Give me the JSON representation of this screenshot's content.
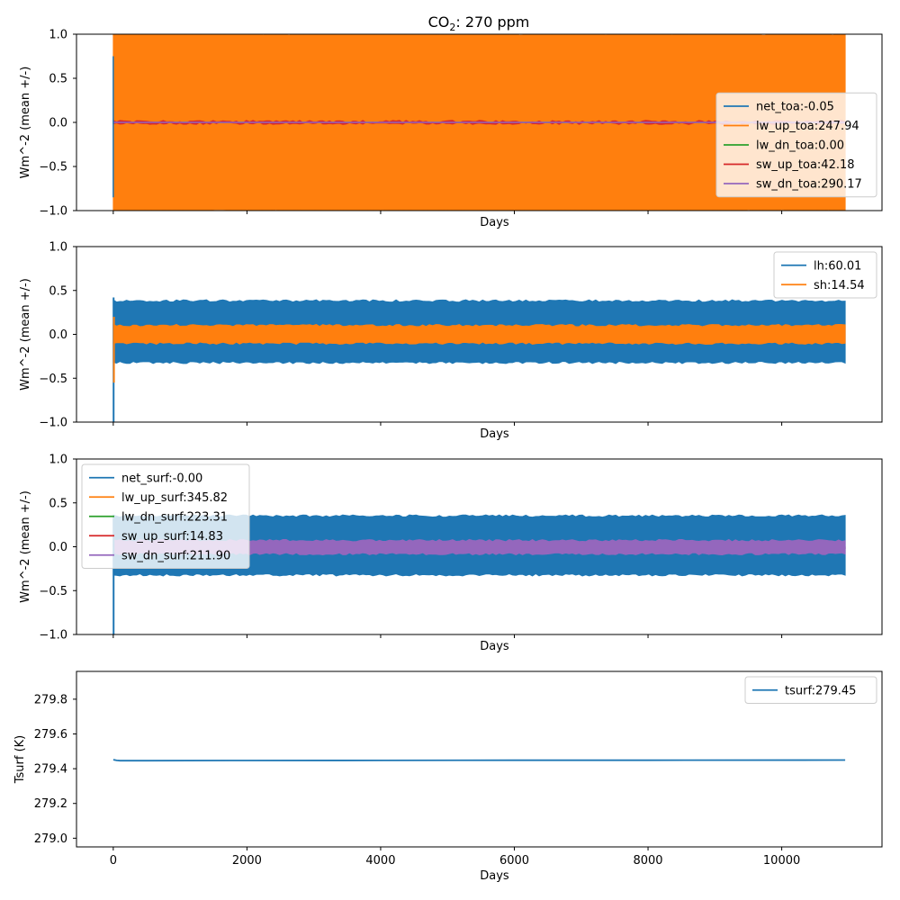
{
  "title": {
    "main": "CO",
    "sub": "2",
    "rest": ": 270 ppm"
  },
  "colors": {
    "c0": "#1f77b4",
    "c1": "#ff7f0e",
    "c2": "#2ca02c",
    "c3": "#d62728",
    "c4": "#9467bd"
  },
  "chart_data": [
    {
      "type": "line",
      "xlabel": "Days",
      "ylabel": "Wm^-2 (mean +/-)",
      "xlim": [
        -550,
        11500
      ],
      "ylim": [
        -1.0,
        1.0
      ],
      "yticks": [
        -1.0,
        -0.5,
        0.0,
        0.5,
        1.0
      ],
      "ytick_labels": [
        "−1.0",
        "−0.5",
        "0.0",
        "0.5",
        "1.0"
      ],
      "xticks": [
        0,
        2000,
        4000,
        6000,
        8000,
        10000
      ],
      "xtick_labels": [],
      "legend_placement": "center-right",
      "series": [
        {
          "name": "net_toa:-0.05",
          "color": "#1f77b4",
          "band": [
            -0.02,
            0.02
          ],
          "x_range": [
            0,
            10950
          ]
        },
        {
          "name": "lw_up_toa:247.94",
          "color": "#ff7f0e",
          "band": [
            -1.0,
            1.0
          ],
          "x_range": [
            0,
            10950
          ]
        },
        {
          "name": "lw_dn_toa:0.00",
          "color": "#2ca02c",
          "band": [
            0.0,
            0.0
          ],
          "x_range": [
            0,
            10950
          ]
        },
        {
          "name": "sw_up_toa:42.18",
          "color": "#d62728",
          "band": [
            -0.01,
            0.01
          ],
          "x_range": [
            0,
            10950
          ]
        },
        {
          "name": "sw_dn_toa:290.17",
          "color": "#9467bd",
          "band": [
            0.0,
            0.0
          ],
          "x_range": [
            0,
            10950
          ]
        }
      ]
    },
    {
      "type": "line",
      "xlabel": "Days",
      "ylabel": "Wm^-2 (mean +/-)",
      "xlim": [
        -550,
        11500
      ],
      "ylim": [
        -1.0,
        1.0
      ],
      "yticks": [
        -1.0,
        -0.5,
        0.0,
        0.5,
        1.0
      ],
      "ytick_labels": [
        "−1.0",
        "−0.5",
        "0.0",
        "0.5",
        "1.0"
      ],
      "xticks": [
        0,
        2000,
        4000,
        6000,
        8000,
        10000
      ],
      "xtick_labels": [],
      "legend_placement": "top-right",
      "series": [
        {
          "name": "lh:60.01",
          "color": "#1f77b4",
          "band": [
            -0.32,
            0.38
          ],
          "x_range": [
            0,
            10950
          ]
        },
        {
          "name": "sh:14.54",
          "color": "#ff7f0e",
          "band": [
            -0.1,
            0.1
          ],
          "x_range": [
            0,
            10950
          ]
        }
      ]
    },
    {
      "type": "line",
      "xlabel": "Days",
      "ylabel": "Wm^-2 (mean +/-)",
      "xlim": [
        -550,
        11500
      ],
      "ylim": [
        -1.0,
        1.0
      ],
      "yticks": [
        -1.0,
        -0.5,
        0.0,
        0.5,
        1.0
      ],
      "ytick_labels": [
        "−1.0",
        "−0.5",
        "0.0",
        "0.5",
        "1.0"
      ],
      "xticks": [
        0,
        2000,
        4000,
        6000,
        8000,
        10000
      ],
      "xtick_labels": [],
      "legend_placement": "top-left",
      "series": [
        {
          "name": "net_surf:-0.00",
          "color": "#1f77b4",
          "band": [
            -0.32,
            0.35
          ],
          "x_range": [
            0,
            10950
          ]
        },
        {
          "name": "lw_up_surf:345.82",
          "color": "#ff7f0e",
          "band": [
            0.0,
            0.0
          ],
          "x_range": [
            0,
            10950
          ]
        },
        {
          "name": "lw_dn_surf:223.31",
          "color": "#2ca02c",
          "band": [
            0.0,
            0.0
          ],
          "x_range": [
            0,
            10950
          ]
        },
        {
          "name": "sw_up_surf:14.83",
          "color": "#d62728",
          "band": [
            -0.01,
            0.01
          ],
          "x_range": [
            0,
            10950
          ]
        },
        {
          "name": "sw_dn_surf:211.90",
          "color": "#9467bd",
          "band": [
            -0.08,
            0.07
          ],
          "x_range": [
            0,
            10950
          ]
        }
      ]
    },
    {
      "type": "line",
      "xlabel": "Days",
      "ylabel": "Tsurf (K)",
      "xlim": [
        -550,
        11500
      ],
      "ylim": [
        278.95,
        279.96
      ],
      "yticks": [
        279.0,
        279.2,
        279.4,
        279.6,
        279.8
      ],
      "ytick_labels": [
        "279.0",
        "279.2",
        "279.4",
        "279.6",
        "279.8"
      ],
      "xticks": [
        0,
        2000,
        4000,
        6000,
        8000,
        10000
      ],
      "xtick_labels": [
        "0",
        "2000",
        "4000",
        "6000",
        "8000",
        "10000"
      ],
      "legend_placement": "top-right",
      "series": [
        {
          "name": "tsurf:279.45",
          "color": "#1f77b4",
          "x": [
            0,
            50,
            100,
            500,
            2000,
            4000,
            6000,
            8000,
            10950
          ],
          "y": [
            279.452,
            279.448,
            279.446,
            279.446,
            279.447,
            279.448,
            279.449,
            279.449,
            279.45
          ]
        }
      ]
    }
  ]
}
